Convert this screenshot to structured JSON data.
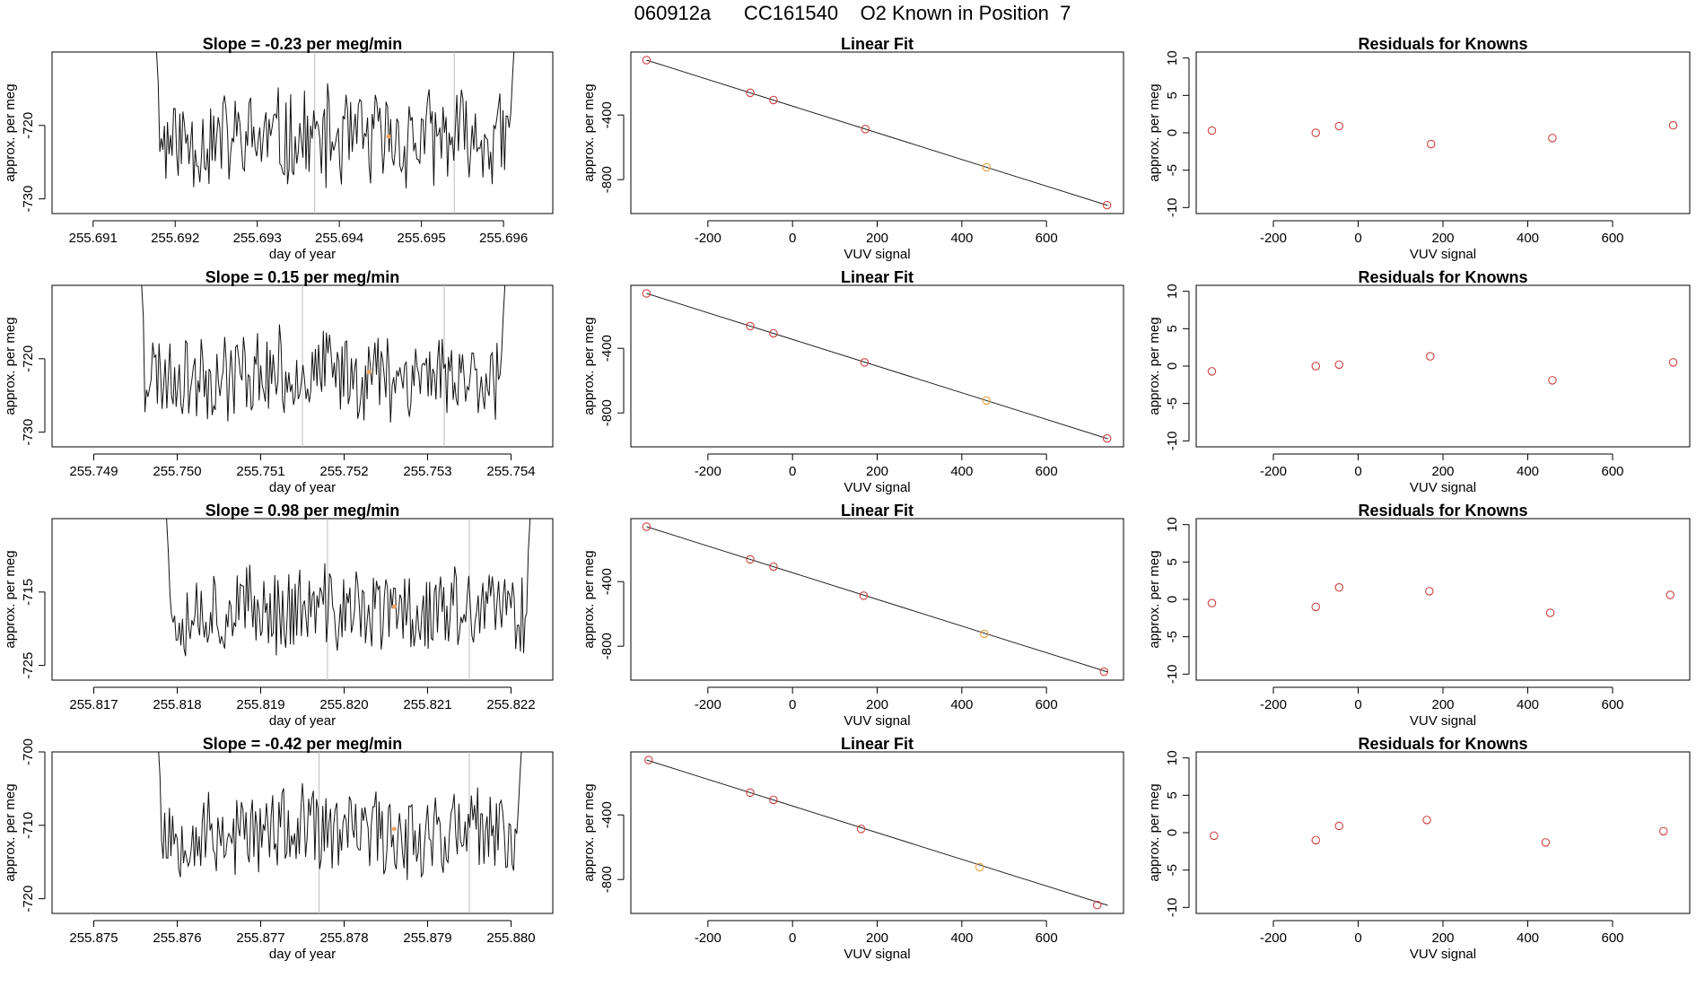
{
  "page": {
    "title": "060912a      CC161540    O2 Known in Position  7"
  },
  "chart_data": [
    {
      "type": "line",
      "panel": "timeseries",
      "title": "Slope =  -0.23  per meg/min",
      "xlabel": "day of year",
      "ylabel": "approx. per meg",
      "xlim": [
        255.6905,
        255.6966
      ],
      "ylim": [
        -732.0,
        -710.0
      ],
      "xticks": [
        255.691,
        255.692,
        255.693,
        255.694,
        255.695,
        255.696
      ],
      "xtick_labels": [
        "255.691",
        "255.692",
        "255.693",
        "255.694",
        "255.695",
        "255.696"
      ],
      "yticks": [
        -730,
        -720
      ],
      "ytick_labels": [
        "-730",
        "-720"
      ],
      "vlines": [
        255.6937,
        255.6954
      ],
      "x_start": 255.6917,
      "x_end": 255.6962,
      "mean": -722.0,
      "amp": 8.0,
      "seed": 11,
      "highlight": {
        "x": 255.6946,
        "y": -721.5,
        "color": "#f4a460"
      }
    },
    {
      "type": "line",
      "panel": "fit",
      "title": "Linear Fit",
      "xlabel": "VUV signal",
      "ylabel": "approx. per meg",
      "xlim": [
        -382,
        782
      ],
      "ylim": [
        -1010,
        -10
      ],
      "xticks": [
        -200,
        0,
        200,
        400,
        600
      ],
      "xtick_labels": [
        "-200",
        "0",
        "200",
        "400",
        "600"
      ],
      "yticks": [
        -800,
        -400
      ],
      "ytick_labels": [
        "-800",
        "-400"
      ],
      "line": {
        "x": [
          -345,
          745
        ],
        "y": [
          -60,
          -960
        ]
      },
      "points": [
        {
          "x": -345,
          "y": -60,
          "color": "#cd3f3f"
        },
        {
          "x": -100,
          "y": -262,
          "color": "#cd3f3f"
        },
        {
          "x": -45,
          "y": -307,
          "color": "#cd3f3f"
        },
        {
          "x": 172,
          "y": -487,
          "color": "#cd3f3f"
        },
        {
          "x": 458,
          "y": -723,
          "color": "#e6a23c"
        },
        {
          "x": 743,
          "y": -958,
          "color": "#cd3f3f"
        }
      ]
    },
    {
      "type": "scatter",
      "panel": "residuals",
      "title": "Residuals for Knowns",
      "xlabel": "VUV signal",
      "ylabel": "approx. per meg",
      "xlim": [
        -382,
        782
      ],
      "ylim": [
        -10.8,
        10.8
      ],
      "xticks": [
        -200,
        0,
        200,
        400,
        600
      ],
      "xtick_labels": [
        "-200",
        "0",
        "200",
        "400",
        "600"
      ],
      "yticks": [
        -10,
        -5,
        0,
        5,
        10
      ],
      "ytick_labels": [
        "-10",
        "-5",
        "0",
        "5",
        "10"
      ],
      "points": [
        {
          "x": -345,
          "y": 0.3,
          "color": "#cd3f3f"
        },
        {
          "x": -100,
          "y": 0.0,
          "color": "#cd3f3f"
        },
        {
          "x": -45,
          "y": 0.9,
          "color": "#cd3f3f"
        },
        {
          "x": 172,
          "y": -1.5,
          "color": "#cd3f3f"
        },
        {
          "x": 458,
          "y": -0.7,
          "color": "#cd3f3f"
        },
        {
          "x": 743,
          "y": 1.0,
          "color": "#cd3f3f"
        }
      ]
    },
    {
      "type": "line",
      "panel": "timeseries",
      "title": "Slope =  0.15  per meg/min",
      "xlabel": "day of year",
      "ylabel": "approx. per meg",
      "xlim": [
        255.7485,
        255.7545
      ],
      "ylim": [
        -732.0,
        -710.0
      ],
      "xticks": [
        255.749,
        255.75,
        255.751,
        255.752,
        255.753,
        255.754
      ],
      "xtick_labels": [
        "255.749",
        "255.750",
        "255.751",
        "255.752",
        "255.753",
        "255.754"
      ],
      "yticks": [
        -730,
        -720
      ],
      "ytick_labels": [
        "-730",
        "-720"
      ],
      "vlines": [
        255.7515,
        255.7532
      ],
      "x_start": 255.7495,
      "x_end": 255.754,
      "mean": -722.0,
      "amp": 7.0,
      "seed": 23,
      "highlight": {
        "x": 255.7523,
        "y": -721.8,
        "color": "#f4a460"
      }
    },
    {
      "type": "line",
      "panel": "fit",
      "title": "Linear Fit",
      "xlabel": "VUV signal",
      "ylabel": "approx. per meg",
      "xlim": [
        -382,
        782
      ],
      "ylim": [
        -1010,
        -10
      ],
      "xticks": [
        -200,
        0,
        200,
        400,
        600
      ],
      "xtick_labels": [
        "-200",
        "0",
        "200",
        "400",
        "600"
      ],
      "yticks": [
        -800,
        -400
      ],
      "ytick_labels": [
        "-800",
        "-400"
      ],
      "line": {
        "x": [
          -345,
          745
        ],
        "y": [
          -60,
          -960
        ]
      },
      "points": [
        {
          "x": -345,
          "y": -60,
          "color": "#cd3f3f"
        },
        {
          "x": -100,
          "y": -262,
          "color": "#cd3f3f"
        },
        {
          "x": -45,
          "y": -307,
          "color": "#cd3f3f"
        },
        {
          "x": 170,
          "y": -487,
          "color": "#cd3f3f"
        },
        {
          "x": 458,
          "y": -723,
          "color": "#e6a23c"
        },
        {
          "x": 743,
          "y": -958,
          "color": "#cd3f3f"
        }
      ]
    },
    {
      "type": "scatter",
      "panel": "residuals",
      "title": "Residuals for Knowns",
      "xlabel": "VUV signal",
      "ylabel": "approx. per meg",
      "xlim": [
        -382,
        782
      ],
      "ylim": [
        -10.8,
        10.8
      ],
      "xticks": [
        -200,
        0,
        200,
        400,
        600
      ],
      "xtick_labels": [
        "-200",
        "0",
        "200",
        "400",
        "600"
      ],
      "yticks": [
        -10,
        -5,
        0,
        5,
        10
      ],
      "ytick_labels": [
        "-10",
        "-5",
        "0",
        "5",
        "10"
      ],
      "points": [
        {
          "x": -345,
          "y": -0.7,
          "color": "#cd3f3f"
        },
        {
          "x": -100,
          "y": 0.0,
          "color": "#cd3f3f"
        },
        {
          "x": -45,
          "y": 0.2,
          "color": "#cd3f3f"
        },
        {
          "x": 170,
          "y": 1.3,
          "color": "#cd3f3f"
        },
        {
          "x": 458,
          "y": -1.9,
          "color": "#cd3f3f"
        },
        {
          "x": 743,
          "y": 0.5,
          "color": "#cd3f3f"
        }
      ]
    },
    {
      "type": "line",
      "panel": "timeseries",
      "title": "Slope =  0.98  per meg/min",
      "xlabel": "day of year",
      "ylabel": "approx. per meg",
      "xlim": [
        255.8165,
        255.8225
      ],
      "ylim": [
        -727.0,
        -705.0
      ],
      "xticks": [
        255.817,
        255.818,
        255.819,
        255.82,
        255.821,
        255.822
      ],
      "xtick_labels": [
        "255.817",
        "255.818",
        "255.819",
        "255.820",
        "255.821",
        "255.822"
      ],
      "yticks": [
        -725,
        -715
      ],
      "ytick_labels": [
        "-725",
        "-715"
      ],
      "vlines": [
        255.8198,
        255.8215
      ],
      "x_start": 255.8178,
      "x_end": 255.8223,
      "mean": -717.5,
      "amp": 7.0,
      "seed": 37,
      "highlight": {
        "x": 255.8206,
        "y": -717.0,
        "color": "#f4a460"
      }
    },
    {
      "type": "line",
      "panel": "fit",
      "title": "Linear Fit",
      "xlabel": "VUV signal",
      "ylabel": "approx. per meg",
      "xlim": [
        -382,
        782
      ],
      "ylim": [
        -1010,
        -10
      ],
      "xticks": [
        -200,
        0,
        200,
        400,
        600
      ],
      "xtick_labels": [
        "-200",
        "0",
        "200",
        "400",
        "600"
      ],
      "yticks": [
        -800,
        -400
      ],
      "ytick_labels": [
        "-800",
        "-400"
      ],
      "line": {
        "x": [
          -345,
          745
        ],
        "y": [
          -60,
          -960
        ]
      },
      "points": [
        {
          "x": -345,
          "y": -60,
          "color": "#cd3f3f"
        },
        {
          "x": -100,
          "y": -262,
          "color": "#cd3f3f"
        },
        {
          "x": -45,
          "y": -307,
          "color": "#cd3f3f"
        },
        {
          "x": 168,
          "y": -487,
          "color": "#cd3f3f"
        },
        {
          "x": 453,
          "y": -723,
          "color": "#e6a23c"
        },
        {
          "x": 736,
          "y": -958,
          "color": "#cd3f3f"
        }
      ]
    },
    {
      "type": "scatter",
      "panel": "residuals",
      "title": "Residuals for Knowns",
      "xlabel": "VUV signal",
      "ylabel": "approx. per meg",
      "xlim": [
        -382,
        782
      ],
      "ylim": [
        -10.8,
        10.8
      ],
      "xticks": [
        -200,
        0,
        200,
        400,
        600
      ],
      "xtick_labels": [
        "-200",
        "0",
        "200",
        "400",
        "600"
      ],
      "yticks": [
        -10,
        -5,
        0,
        5,
        10
      ],
      "ytick_labels": [
        "-10",
        "-5",
        "0",
        "5",
        "10"
      ],
      "points": [
        {
          "x": -345,
          "y": -0.5,
          "color": "#cd3f3f"
        },
        {
          "x": -100,
          "y": -1.0,
          "color": "#cd3f3f"
        },
        {
          "x": -45,
          "y": 1.6,
          "color": "#cd3f3f"
        },
        {
          "x": 168,
          "y": 1.1,
          "color": "#cd3f3f"
        },
        {
          "x": 453,
          "y": -1.8,
          "color": "#cd3f3f"
        },
        {
          "x": 736,
          "y": 0.6,
          "color": "#cd3f3f"
        }
      ]
    },
    {
      "type": "line",
      "panel": "timeseries",
      "title": "Slope =  -0.42  per meg/min",
      "xlabel": "day of year",
      "ylabel": "approx. per meg",
      "xlim": [
        255.8745,
        255.8805
      ],
      "ylim": [
        -722.0,
        -700.0
      ],
      "xticks": [
        255.875,
        255.876,
        255.877,
        255.878,
        255.879,
        255.88
      ],
      "xtick_labels": [
        "255.875",
        "255.876",
        "255.877",
        "255.878",
        "255.879",
        "255.880"
      ],
      "yticks": [
        -720,
        -710,
        -700
      ],
      "ytick_labels": [
        "-720",
        "-710",
        "-700"
      ],
      "vlines": [
        255.8777,
        255.8795
      ],
      "x_start": 255.8757,
      "x_end": 255.8802,
      "mean": -711.0,
      "amp": 7.0,
      "seed": 53,
      "highlight": {
        "x": 255.8786,
        "y": -710.5,
        "color": "#f4a460"
      }
    },
    {
      "type": "line",
      "panel": "fit",
      "title": "Linear Fit",
      "xlabel": "VUV signal",
      "ylabel": "approx. per meg",
      "xlim": [
        -382,
        782
      ],
      "ylim": [
        -1010,
        -10
      ],
      "xticks": [
        -200,
        0,
        200,
        400,
        600
      ],
      "xtick_labels": [
        "-200",
        "0",
        "200",
        "400",
        "600"
      ],
      "yticks": [
        -800,
        -400
      ],
      "ytick_labels": [
        "-800",
        "-400"
      ],
      "line": {
        "x": [
          -345,
          745
        ],
        "y": [
          -60,
          -960
        ]
      },
      "points": [
        {
          "x": -340,
          "y": -60,
          "color": "#cd3f3f"
        },
        {
          "x": -100,
          "y": -262,
          "color": "#cd3f3f"
        },
        {
          "x": -45,
          "y": -307,
          "color": "#cd3f3f"
        },
        {
          "x": 162,
          "y": -487,
          "color": "#cd3f3f"
        },
        {
          "x": 442,
          "y": -723,
          "color": "#e6a23c"
        },
        {
          "x": 720,
          "y": -958,
          "color": "#cd3f3f"
        }
      ]
    },
    {
      "type": "scatter",
      "panel": "residuals",
      "title": "Residuals for Knowns",
      "xlabel": "VUV signal",
      "ylabel": "approx. per meg",
      "xlim": [
        -382,
        782
      ],
      "ylim": [
        -10.8,
        10.8
      ],
      "xticks": [
        -200,
        0,
        200,
        400,
        600
      ],
      "xtick_labels": [
        "-200",
        "0",
        "200",
        "400",
        "600"
      ],
      "yticks": [
        -10,
        -5,
        0,
        5,
        10
      ],
      "ytick_labels": [
        "-10",
        "-5",
        "0",
        "5",
        "10"
      ],
      "points": [
        {
          "x": -340,
          "y": -0.4,
          "color": "#cd3f3f"
        },
        {
          "x": -100,
          "y": -1.0,
          "color": "#cd3f3f"
        },
        {
          "x": -45,
          "y": 0.9,
          "color": "#cd3f3f"
        },
        {
          "x": 162,
          "y": 1.7,
          "color": "#cd3f3f"
        },
        {
          "x": 442,
          "y": -1.3,
          "color": "#cd3f3f"
        },
        {
          "x": 720,
          "y": 0.2,
          "color": "#cd3f3f"
        }
      ]
    }
  ]
}
